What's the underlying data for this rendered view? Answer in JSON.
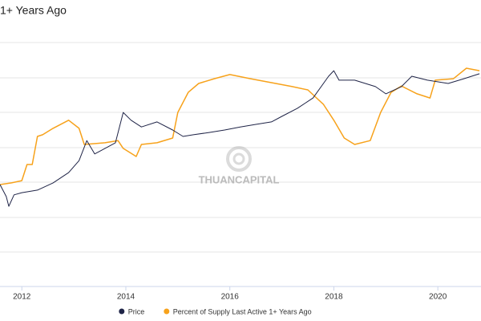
{
  "chart_data": {
    "type": "line",
    "title": "1+ Years Ago",
    "watermark": "THUANCAPITAL",
    "xlim": [
      2011.58,
      2020.83
    ],
    "xticks": [
      2012,
      2014,
      2016,
      2018,
      2020
    ],
    "ylim": [
      0,
      100
    ],
    "series": [
      {
        "name": "Price",
        "color": "#1f2447",
        "x": [
          2011.58,
          2011.7,
          2011.75,
          2011.85,
          2012.0,
          2012.3,
          2012.6,
          2012.9,
          2013.1,
          2013.25,
          2013.4,
          2013.6,
          2013.8,
          2013.95,
          2014.1,
          2014.3,
          2014.6,
          2014.9,
          2015.1,
          2015.3,
          2015.6,
          2015.9,
          2016.2,
          2016.5,
          2016.8,
          2017.0,
          2017.3,
          2017.6,
          2017.9,
          2018.0,
          2018.1,
          2018.4,
          2018.8,
          2019.0,
          2019.3,
          2019.5,
          2019.8,
          2020.2,
          2020.5,
          2020.8
        ],
        "values": [
          36.6,
          32.3,
          28.8,
          32.9,
          33.7,
          34.6,
          37.2,
          40.9,
          45.2,
          52.4,
          47.6,
          49.6,
          51.6,
          62.5,
          59.7,
          57.3,
          59.1,
          56.2,
          53.9,
          54.5,
          55.3,
          56.2,
          57.3,
          58.2,
          59.1,
          61.1,
          64.0,
          67.7,
          75.5,
          77.5,
          74.1,
          74.1,
          71.8,
          69.2,
          71.8,
          75.5,
          74.1,
          72.9,
          74.6,
          76.4
        ]
      },
      {
        "name": "Percent of Supply Last Active 1+ Years Ago",
        "color": "#f7a21b",
        "x": [
          2011.58,
          2011.8,
          2012.0,
          2012.1,
          2012.2,
          2012.3,
          2012.4,
          2012.6,
          2012.9,
          2013.1,
          2013.2,
          2013.6,
          2013.85,
          2013.95,
          2014.2,
          2014.3,
          2014.6,
          2014.9,
          2015.0,
          2015.2,
          2015.4,
          2015.7,
          2016.0,
          2016.4,
          2016.8,
          2017.2,
          2017.5,
          2017.8,
          2018.0,
          2018.2,
          2018.4,
          2018.7,
          2018.9,
          2019.1,
          2019.3,
          2019.6,
          2019.85,
          2019.95,
          2020.3,
          2020.55,
          2020.8
        ],
        "values": [
          36.6,
          37.2,
          38.0,
          43.8,
          43.8,
          53.9,
          54.5,
          56.8,
          59.7,
          56.8,
          51.0,
          51.6,
          52.4,
          49.6,
          46.7,
          51.0,
          51.6,
          53.3,
          62.5,
          69.7,
          72.9,
          74.6,
          76.1,
          74.6,
          73.2,
          71.8,
          70.6,
          65.4,
          59.7,
          53.3,
          51.0,
          52.4,
          62.5,
          69.7,
          72.0,
          69.2,
          67.7,
          74.1,
          74.6,
          78.4,
          77.5
        ]
      }
    ],
    "legend": "bottom"
  }
}
